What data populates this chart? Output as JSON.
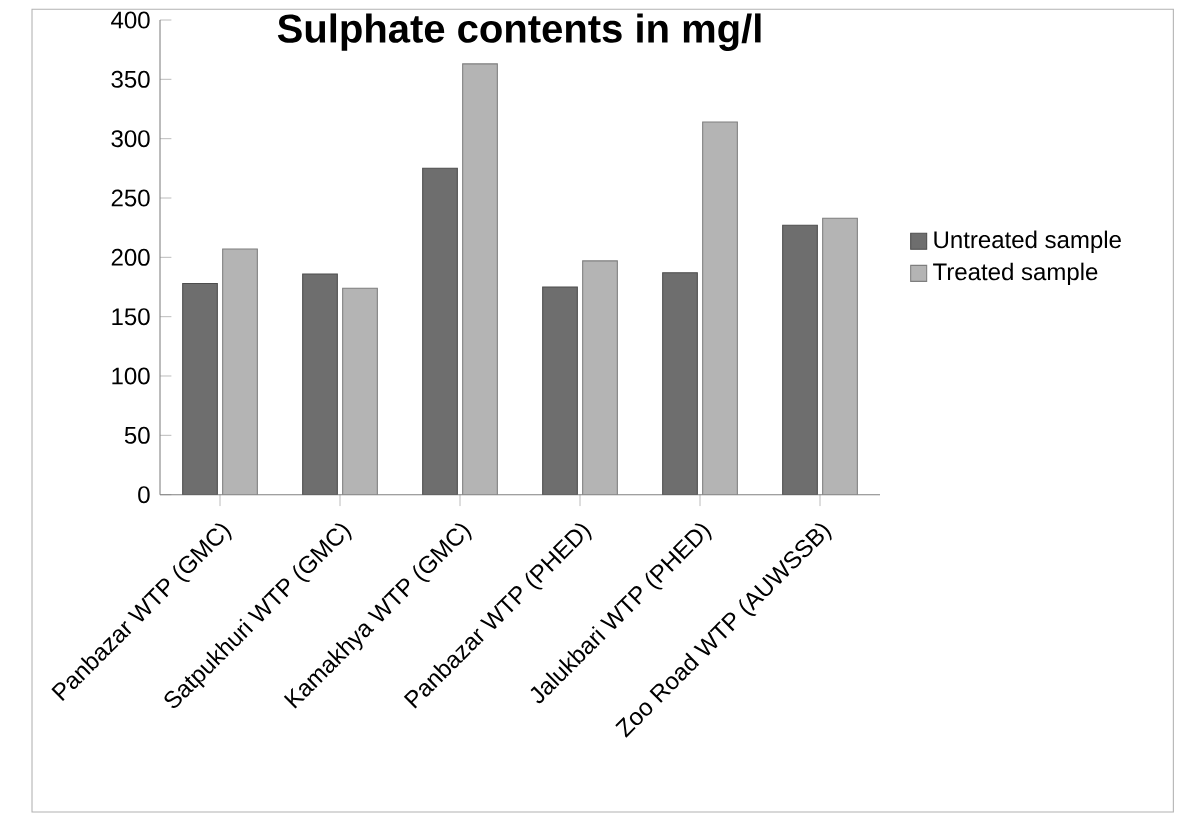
{
  "chart_data": {
    "type": "bar",
    "title": "Sulphate contents in mg/l",
    "categories": [
      "Panbazar WTP (GMC)",
      "Satpukhuri WTP (GMC)",
      "Kamakhya WTP (GMC)",
      "Panbazar WTP (PHED)",
      "Jalukbari WTP (PHED)",
      "Zoo Road WTP (AUWSSB)"
    ],
    "series": [
      {
        "name": "Untreated sample",
        "color": "#6e6e6e",
        "values": [
          178,
          186,
          275,
          175,
          187,
          227
        ]
      },
      {
        "name": "Treated sample",
        "color": "#b4b4b4",
        "values": [
          207,
          174,
          363,
          197,
          314,
          233
        ]
      }
    ],
    "ylim": [
      0,
      400
    ],
    "yticks": [
      0,
      50,
      100,
      150,
      200,
      250,
      300,
      350,
      400
    ],
    "grid": false,
    "legend": "right"
  }
}
